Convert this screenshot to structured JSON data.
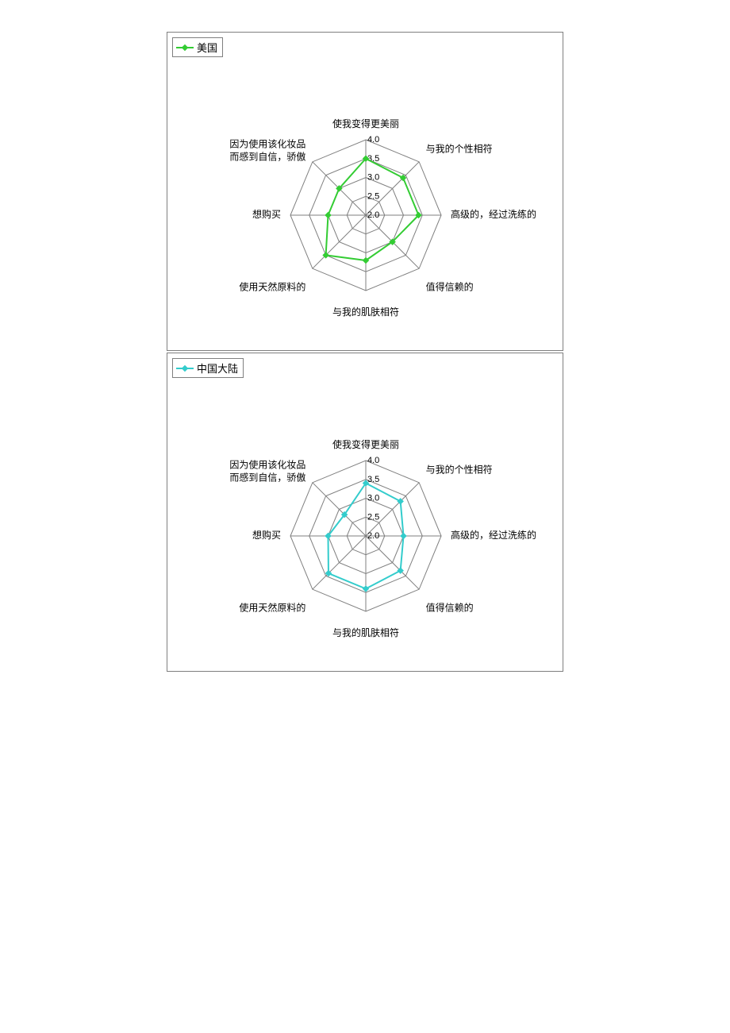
{
  "charts": [
    {
      "legend_label": "美国",
      "series_color": "#33cc33",
      "marker_color": "#33cc33",
      "line_width": 2,
      "type": "radar",
      "background_color": "#ffffff",
      "grid_color": "#7f7f7f",
      "axes": [
        "使我变得更美丽",
        "与我的个性相符",
        "高级的，经过洗练的",
        "值得信赖的",
        "与我的肌肤相符",
        "使用天然原料的",
        "想购买",
        "因为使用该化妆品而感到自信，骄傲"
      ],
      "rings": [
        2.0,
        2.5,
        3.0,
        3.5,
        4.0
      ],
      "r_min": 2.0,
      "r_max": 4.0,
      "values": [
        3.5,
        3.4,
        3.4,
        3.0,
        3.2,
        3.5,
        3.0,
        3.0
      ],
      "label_fontsize": 12,
      "ring_label_fontsize": 11
    },
    {
      "legend_label": "中国大陆",
      "series_color": "#33cccc",
      "marker_color": "#33cccc",
      "line_width": 2,
      "type": "radar",
      "background_color": "#ffffff",
      "grid_color": "#7f7f7f",
      "axes": [
        "使我变得更美丽",
        "与我的个性相符",
        "高级的，经过洗练的",
        "值得信赖的",
        "与我的肌肤相符",
        "使用天然原料的",
        "想购买",
        "因为使用该化妆品而感到自信，骄傲"
      ],
      "rings": [
        2.0,
        2.5,
        3.0,
        3.5,
        4.0
      ],
      "r_min": 2.0,
      "r_max": 4.0,
      "values": [
        3.4,
        3.3,
        3.0,
        3.3,
        3.4,
        3.4,
        3.0,
        2.8
      ],
      "label_fontsize": 12,
      "ring_label_fontsize": 11
    }
  ],
  "panel_border_color": "#7f7f7f",
  "legend_border_color": "#7f7f7f"
}
